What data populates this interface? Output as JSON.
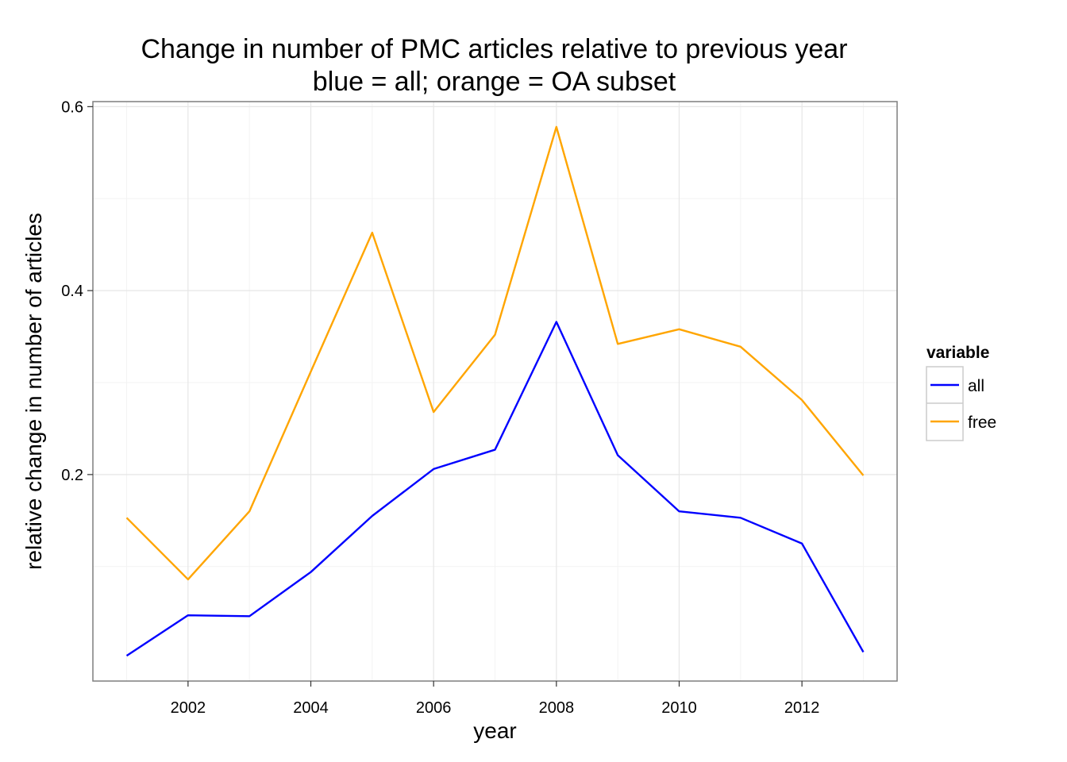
{
  "chart_data": {
    "type": "line",
    "title": "Change in number of PMC articles relative to previous year",
    "subtitle": "blue = all; orange = OA subset",
    "xlabel": "year",
    "ylabel": "relative change in number of articles",
    "x": [
      2001,
      2002,
      2003,
      2004,
      2005,
      2006,
      2007,
      2008,
      2009,
      2010,
      2011,
      2012,
      2013
    ],
    "series": [
      {
        "name": "all",
        "color": "#0000FF",
        "values": [
          0.003,
          0.047,
          0.046,
          0.094,
          0.155,
          0.206,
          0.227,
          0.366,
          0.221,
          0.16,
          0.153,
          0.125,
          0.007
        ]
      },
      {
        "name": "free",
        "color": "#FFA500",
        "values": [
          0.153,
          0.086,
          0.16,
          0.312,
          0.463,
          0.268,
          0.352,
          0.578,
          0.342,
          0.358,
          0.339,
          0.281,
          0.199
        ]
      }
    ],
    "xlim": [
      2000.45,
      2013.55
    ],
    "ylim": [
      -0.0245,
      0.6055
    ],
    "x_ticks": [
      2002,
      2004,
      2006,
      2008,
      2010,
      2012
    ],
    "x_tick_labels": [
      "2002",
      "2004",
      "2006",
      "2008",
      "2010",
      "2012"
    ],
    "y_ticks": [
      0.2,
      0.4,
      0.6
    ],
    "y_tick_labels": [
      "0.2",
      "0.4",
      "0.6"
    ],
    "grid": true,
    "legend": {
      "title": "variable",
      "position": "right"
    }
  }
}
